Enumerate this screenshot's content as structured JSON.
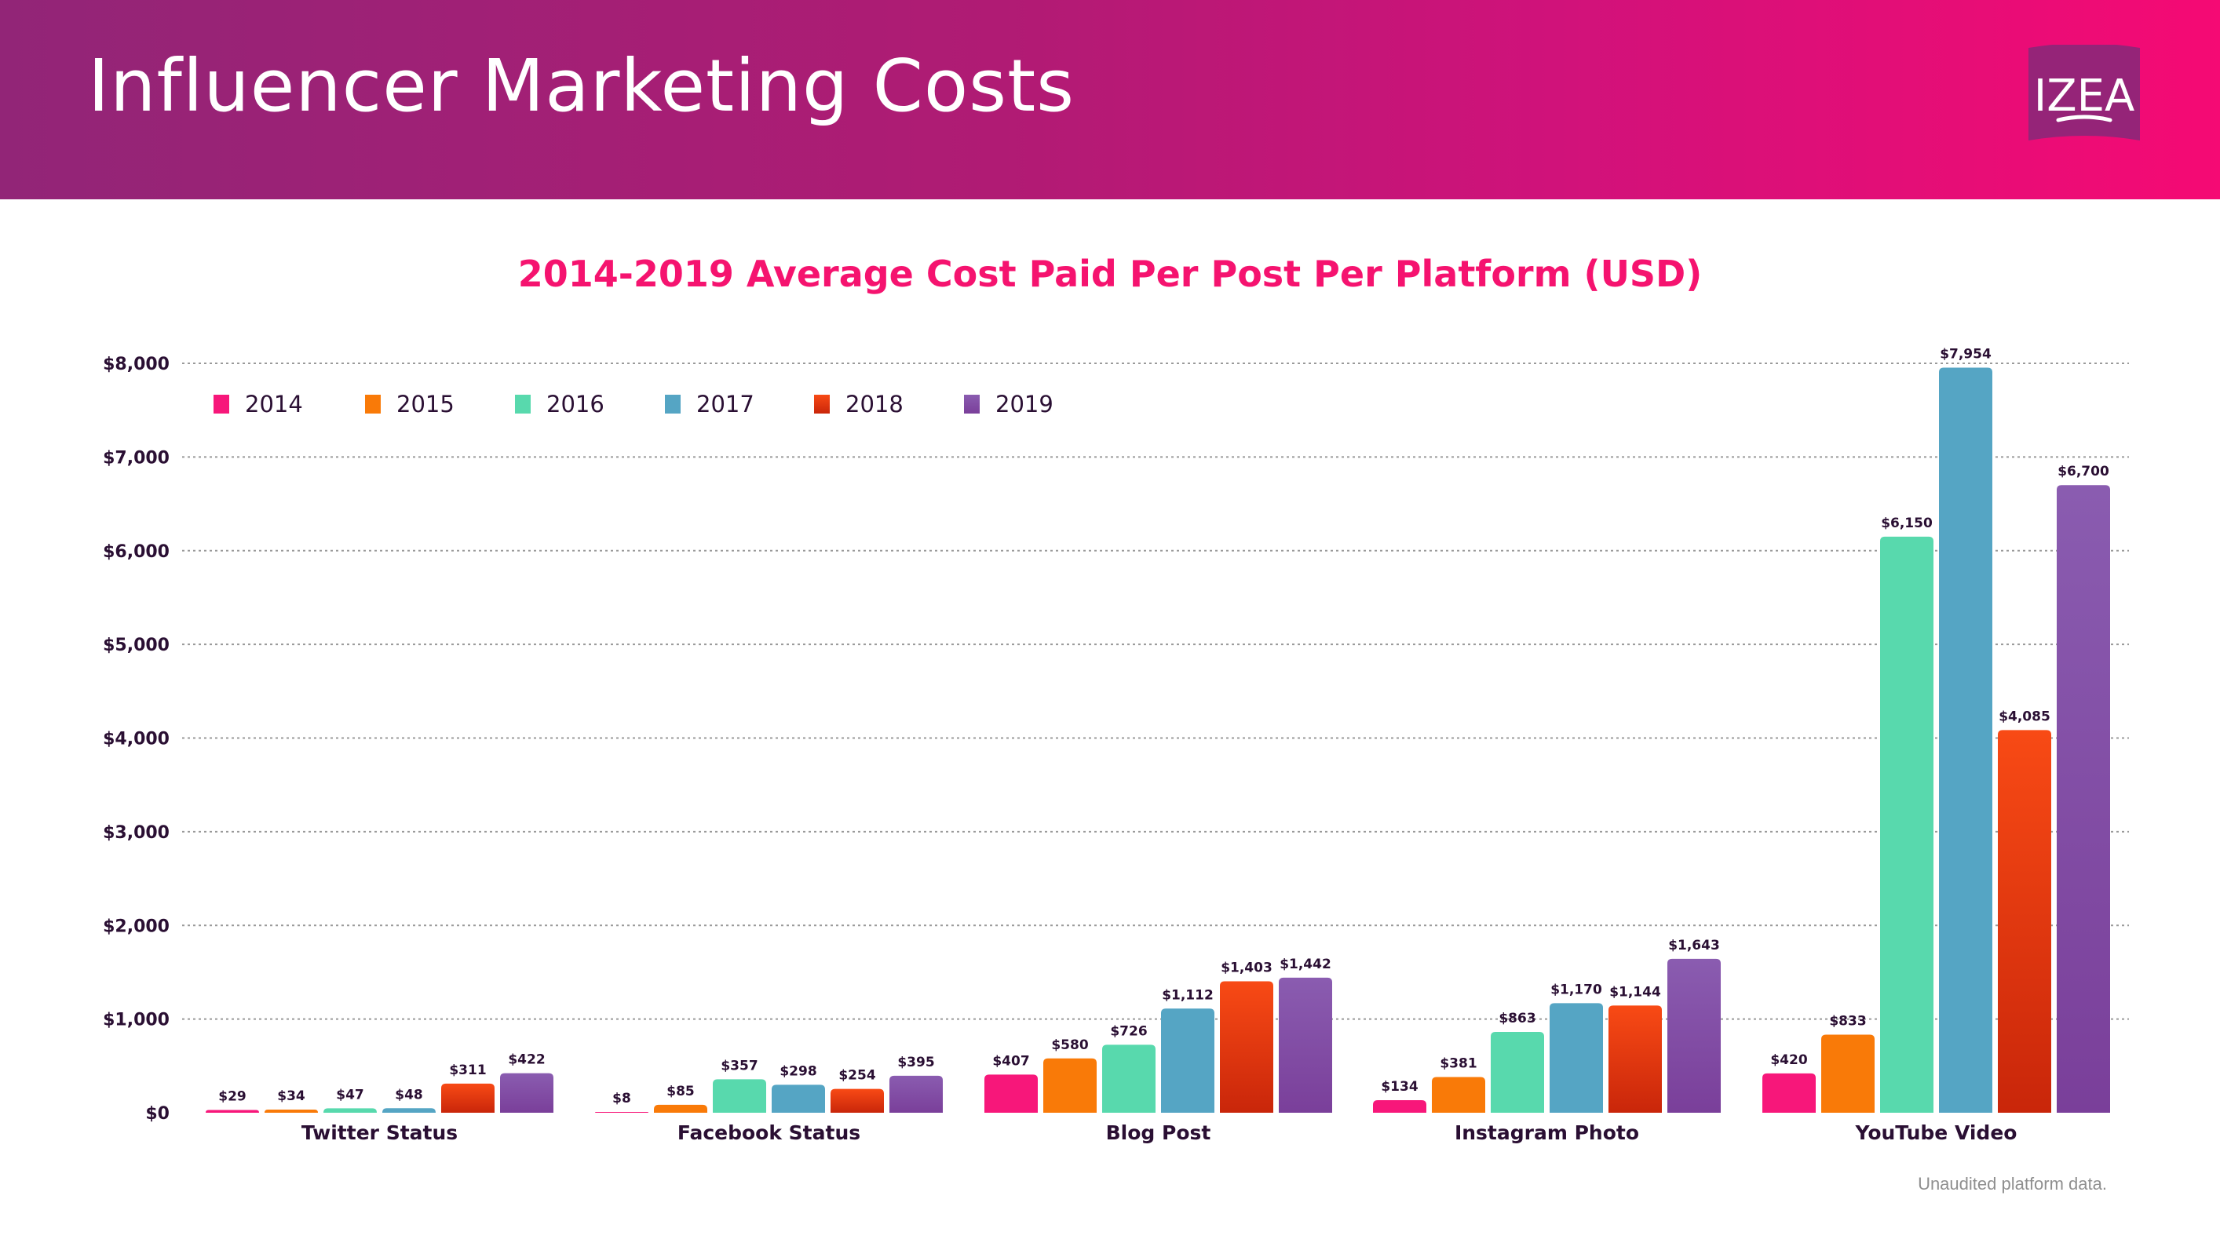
{
  "header": {
    "title": "Influencer Marketing Costs",
    "logo_text": "IZEA"
  },
  "colors": {
    "header_start": "#922577",
    "header_end": "#f50a74",
    "title_pink": "#f5136f",
    "text_dark": "#2a0f33",
    "grid": "#9a9a9a"
  },
  "footnote": "Unaudited platform data.",
  "chart_data": {
    "type": "bar",
    "title": "2014-2019 Average Cost Paid Per Post Per Platform (USD)",
    "xlabel": "",
    "ylabel": "",
    "ylim": [
      0,
      8000
    ],
    "yticks": [
      0,
      1000,
      2000,
      3000,
      4000,
      5000,
      6000,
      7000,
      8000
    ],
    "ytick_labels": [
      "$0",
      "$1,000",
      "$2,000",
      "$3,000",
      "$4,000",
      "$5,000",
      "$6,000",
      "$7,000",
      "$8,000"
    ],
    "grid": true,
    "legend_position": "top-left",
    "categories": [
      "Twitter Status",
      "Facebook Status",
      "Blog Post",
      "Instagram Photo",
      "YouTube Video"
    ],
    "series": [
      {
        "name": "2014",
        "color": "#f7177a",
        "color_bottom": "#f7177a",
        "values": [
          29,
          8,
          407,
          134,
          420
        ],
        "labels": [
          "$29",
          "$8",
          "$407",
          "$134",
          "$420"
        ]
      },
      {
        "name": "2015",
        "color": "#f97a08",
        "color_bottom": "#f97a08",
        "values": [
          34,
          85,
          580,
          381,
          833
        ],
        "labels": [
          "$34",
          "$85",
          "$580",
          "$381",
          "$833"
        ]
      },
      {
        "name": "2016",
        "color": "#58d9ad",
        "color_bottom": "#58d9ad",
        "values": [
          47,
          357,
          726,
          863,
          6150
        ],
        "labels": [
          "$47",
          "$357",
          "$726",
          "$863",
          "$6,150"
        ]
      },
      {
        "name": "2017",
        "color": "#55a5c4",
        "color_bottom": "#55a5c4",
        "values": [
          48,
          298,
          1112,
          1170,
          7954
        ],
        "labels": [
          "$48",
          "$298",
          "$1,112",
          "$1,170",
          "$7,954"
        ]
      },
      {
        "name": "2018",
        "color": "#f84a15",
        "color_bottom": "#c9260a",
        "values": [
          311,
          254,
          1403,
          1144,
          4085
        ],
        "labels": [
          "$311",
          "$254",
          "$1,403",
          "$1,144",
          "$4,085"
        ]
      },
      {
        "name": "2019",
        "color": "#8a5cb0",
        "color_bottom": "#7a3f9a",
        "values": [
          422,
          395,
          1442,
          1643,
          6700
        ],
        "labels": [
          "$422",
          "$395",
          "$1,442",
          "$1,643",
          "$6,700"
        ]
      }
    ]
  }
}
